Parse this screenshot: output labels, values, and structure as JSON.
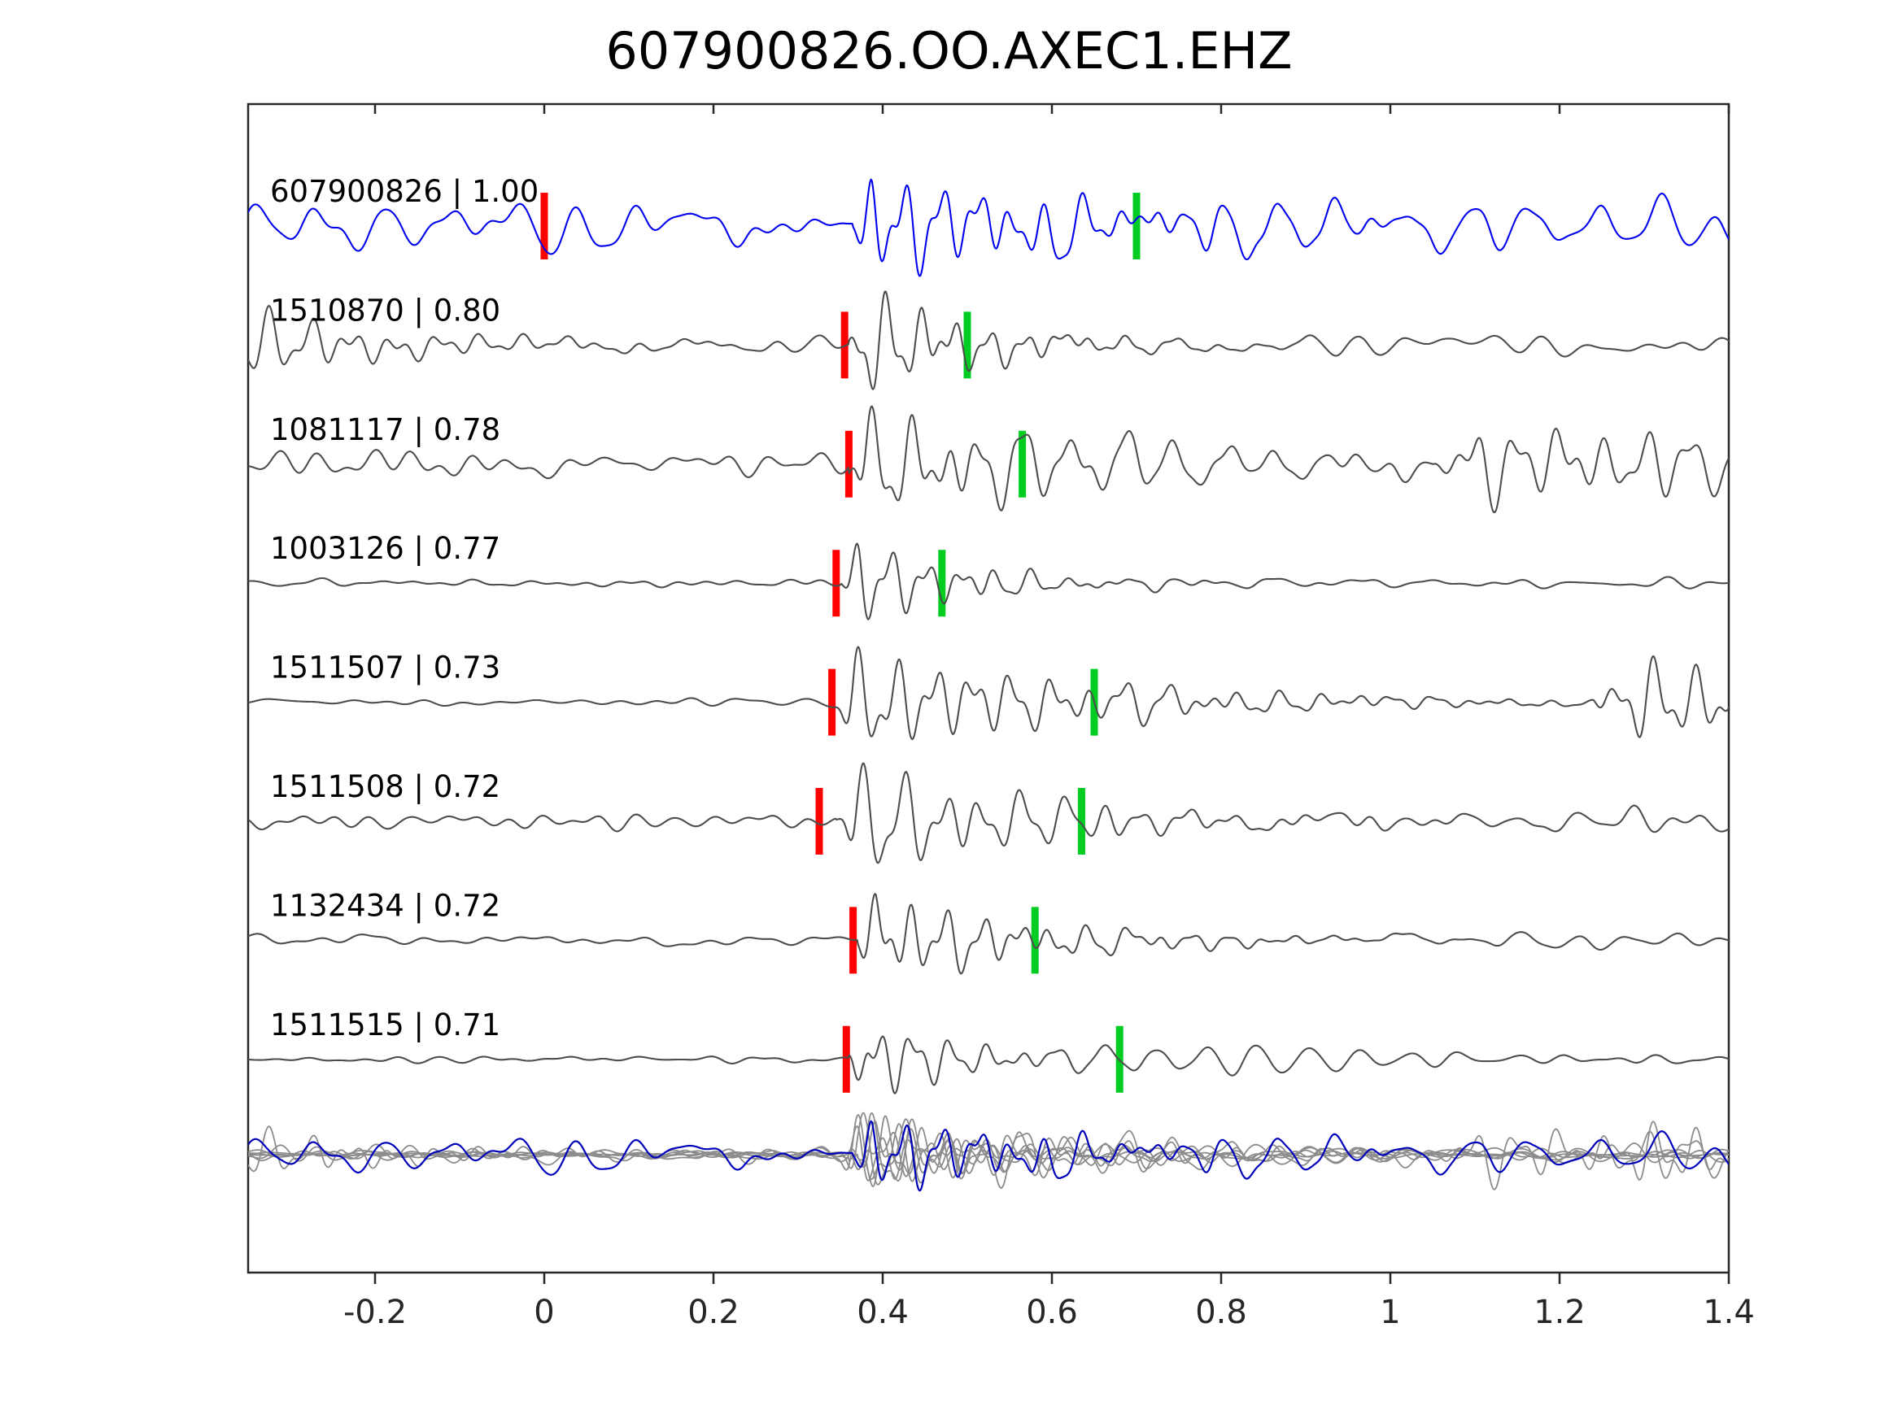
{
  "title": "607900826.OO.AXEC1.EHZ",
  "chart_data": {
    "type": "line",
    "subtype": "seismic-waveform-correlation-stack",
    "title": "607900826.OO.AXEC1.EHZ",
    "xlabel": "",
    "ylabel": "",
    "grid": false,
    "xlim": [
      -0.35,
      1.4
    ],
    "x_ticks": [
      -0.2,
      0,
      0.2,
      0.4,
      0.6,
      0.8,
      1,
      1.2,
      1.4
    ],
    "x_tick_labels": [
      "-0.2",
      "0",
      "0.2",
      "0.4",
      "0.6",
      "0.8",
      "1",
      "1.2",
      "1.4"
    ],
    "colors": {
      "template": "#0000ee",
      "detection": "#4d4d4d",
      "overlay_detection": "#8c8c8c",
      "overlay_template": "#0000bb",
      "pick_red": "#ff0000",
      "pick_green": "#00cc22",
      "axis": "#262626",
      "label_text": "#000000"
    },
    "traces": [
      {
        "id": "607900826",
        "cc": "1.00",
        "label": "607900826 | 1.00",
        "role": "template",
        "red_pick": 0.0,
        "green_pick": 0.7,
        "onset": 0.365,
        "noise_amp": 0.3,
        "burst_amp": 1.0,
        "decay": 0.22,
        "coda_amp": 0.3,
        "freq": 24,
        "seed": 11
      },
      {
        "id": "1510870",
        "cc": "0.80",
        "label": "1510870 | 0.80",
        "role": "detection",
        "red_pick": 0.355,
        "green_pick": 0.5,
        "onset": 0.36,
        "noise_amp": 0.13,
        "burst_amp": 1.0,
        "decay": 0.14,
        "coda_amp": 0.2,
        "freq": 25,
        "seed": 22,
        "packets": [
          {
            "t": -0.52,
            "amp": 1.3,
            "decay": 0.22,
            "f": 20
          }
        ]
      },
      {
        "id": "1081117",
        "cc": "0.78",
        "label": "1081117 | 0.78",
        "role": "detection",
        "red_pick": 0.36,
        "green_pick": 0.565,
        "onset": 0.36,
        "noise_amp": 0.15,
        "burst_amp": 0.95,
        "decay": 0.2,
        "coda_amp": 0.45,
        "freq": 23,
        "seed": 33,
        "packets": [
          {
            "t": 1.05,
            "amp": 0.8,
            "decay": 0.45,
            "f": 19
          }
        ]
      },
      {
        "id": "1003126",
        "cc": "0.77",
        "label": "1003126 | 0.77",
        "role": "detection",
        "red_pick": 0.345,
        "green_pick": 0.47,
        "onset": 0.35,
        "noise_amp": 0.05,
        "burst_amp": 0.9,
        "decay": 0.12,
        "coda_amp": 0.1,
        "freq": 24,
        "seed": 44
      },
      {
        "id": "1511507",
        "cc": "0.73",
        "label": "1511507 | 0.73",
        "role": "detection",
        "red_pick": 0.34,
        "green_pick": 0.65,
        "onset": 0.345,
        "noise_amp": 0.07,
        "burst_amp": 1.0,
        "decay": 0.28,
        "coda_amp": 0.16,
        "freq": 22,
        "seed": 55,
        "packets": [
          {
            "t": 1.24,
            "amp": 0.95,
            "decay": 0.25,
            "f": 21
          }
        ]
      },
      {
        "id": "1511508",
        "cc": "0.72",
        "label": "1511508 | 0.72",
        "role": "detection",
        "red_pick": 0.325,
        "green_pick": 0.635,
        "onset": 0.345,
        "noise_amp": 0.12,
        "burst_amp": 1.0,
        "decay": 0.22,
        "coda_amp": 0.22,
        "freq": 21,
        "seed": 66
      },
      {
        "id": "1132434",
        "cc": "0.72",
        "label": "1132434 | 0.72",
        "role": "detection",
        "red_pick": 0.365,
        "green_pick": 0.58,
        "onset": 0.37,
        "noise_amp": 0.08,
        "burst_amp": 0.92,
        "decay": 0.18,
        "coda_amp": 0.15,
        "freq": 24,
        "seed": 77
      },
      {
        "id": "1511515",
        "cc": "0.71",
        "label": "1511515 | 0.71",
        "role": "detection",
        "red_pick": 0.357,
        "green_pick": 0.68,
        "onset": 0.36,
        "noise_amp": 0.06,
        "burst_amp": 0.95,
        "decay": 0.11,
        "coda_amp": 0.32,
        "freq": 23,
        "seed": 88
      }
    ],
    "overlay": {
      "description": "all traces overlaid at bottom, template in blue over gray detections",
      "amplitude_scale": 0.72
    },
    "legend_position": "none"
  }
}
